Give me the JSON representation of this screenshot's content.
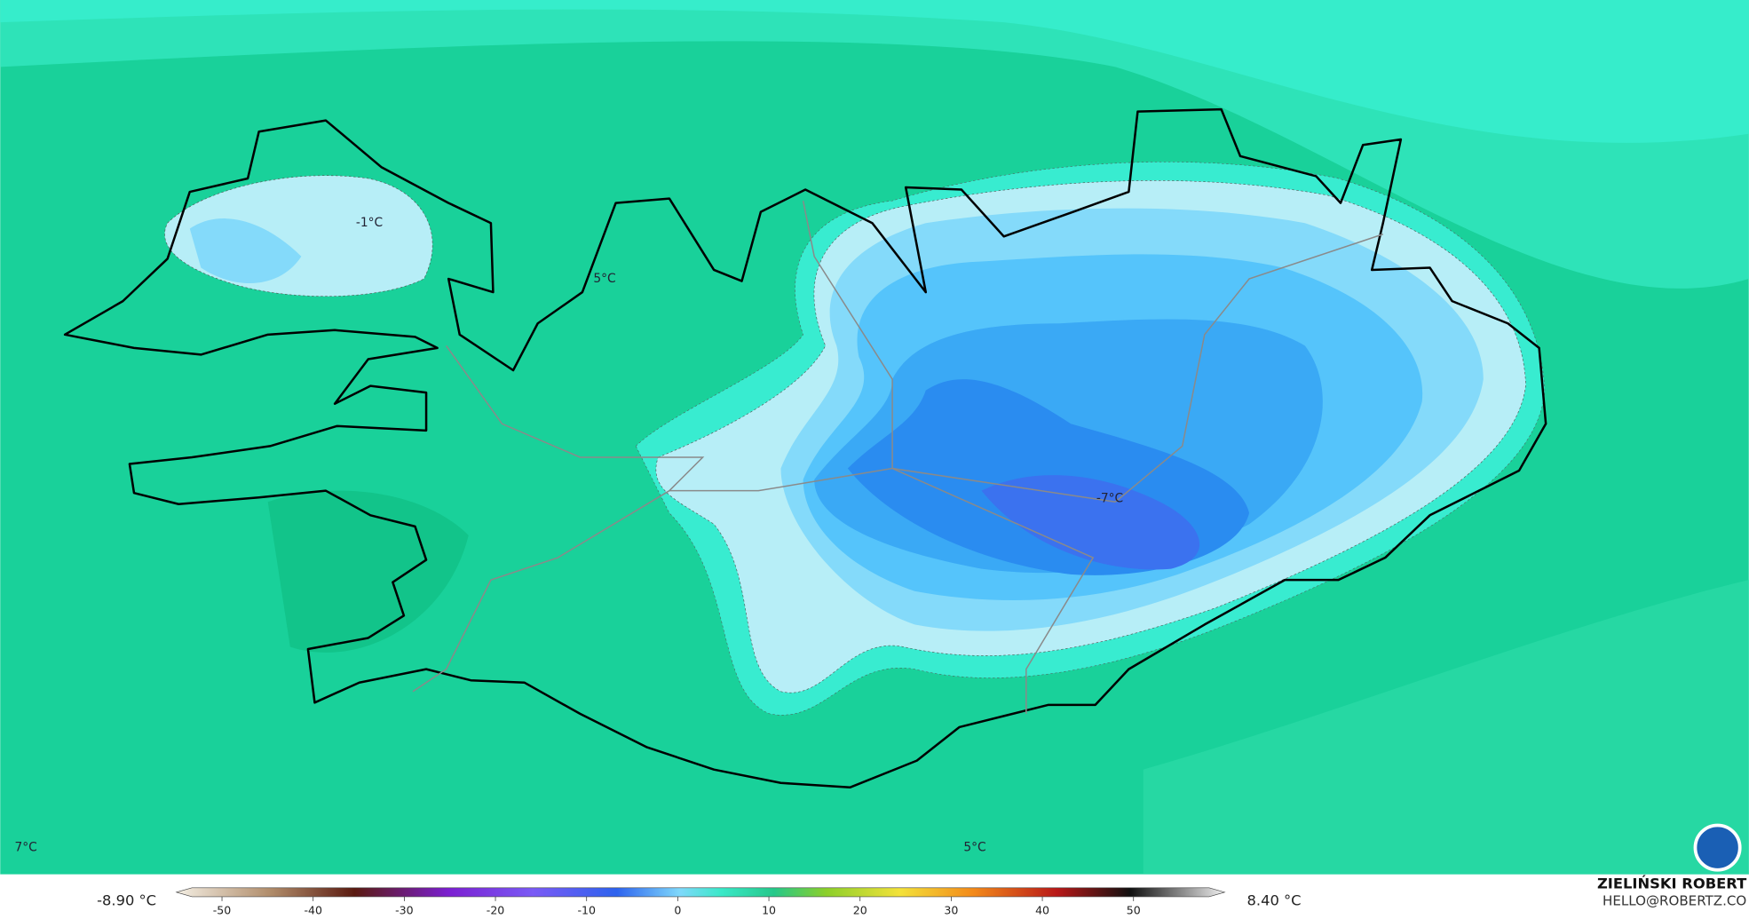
{
  "map": {
    "labels": [
      "-1°C",
      "5°C",
      "-7°C",
      "7°C",
      "5°C"
    ]
  },
  "legend": {
    "min_label": "-8.90 °C",
    "max_label": "8.40 °C",
    "ticks": [
      -50,
      -40,
      -30,
      -20,
      -10,
      0,
      10,
      20,
      30,
      40,
      50
    ],
    "lim": [
      -55,
      60
    ]
  },
  "credit": {
    "name": "ZIELIŃSKI ROBERT",
    "email": "HELLO@ROBERTZ.CO"
  }
}
